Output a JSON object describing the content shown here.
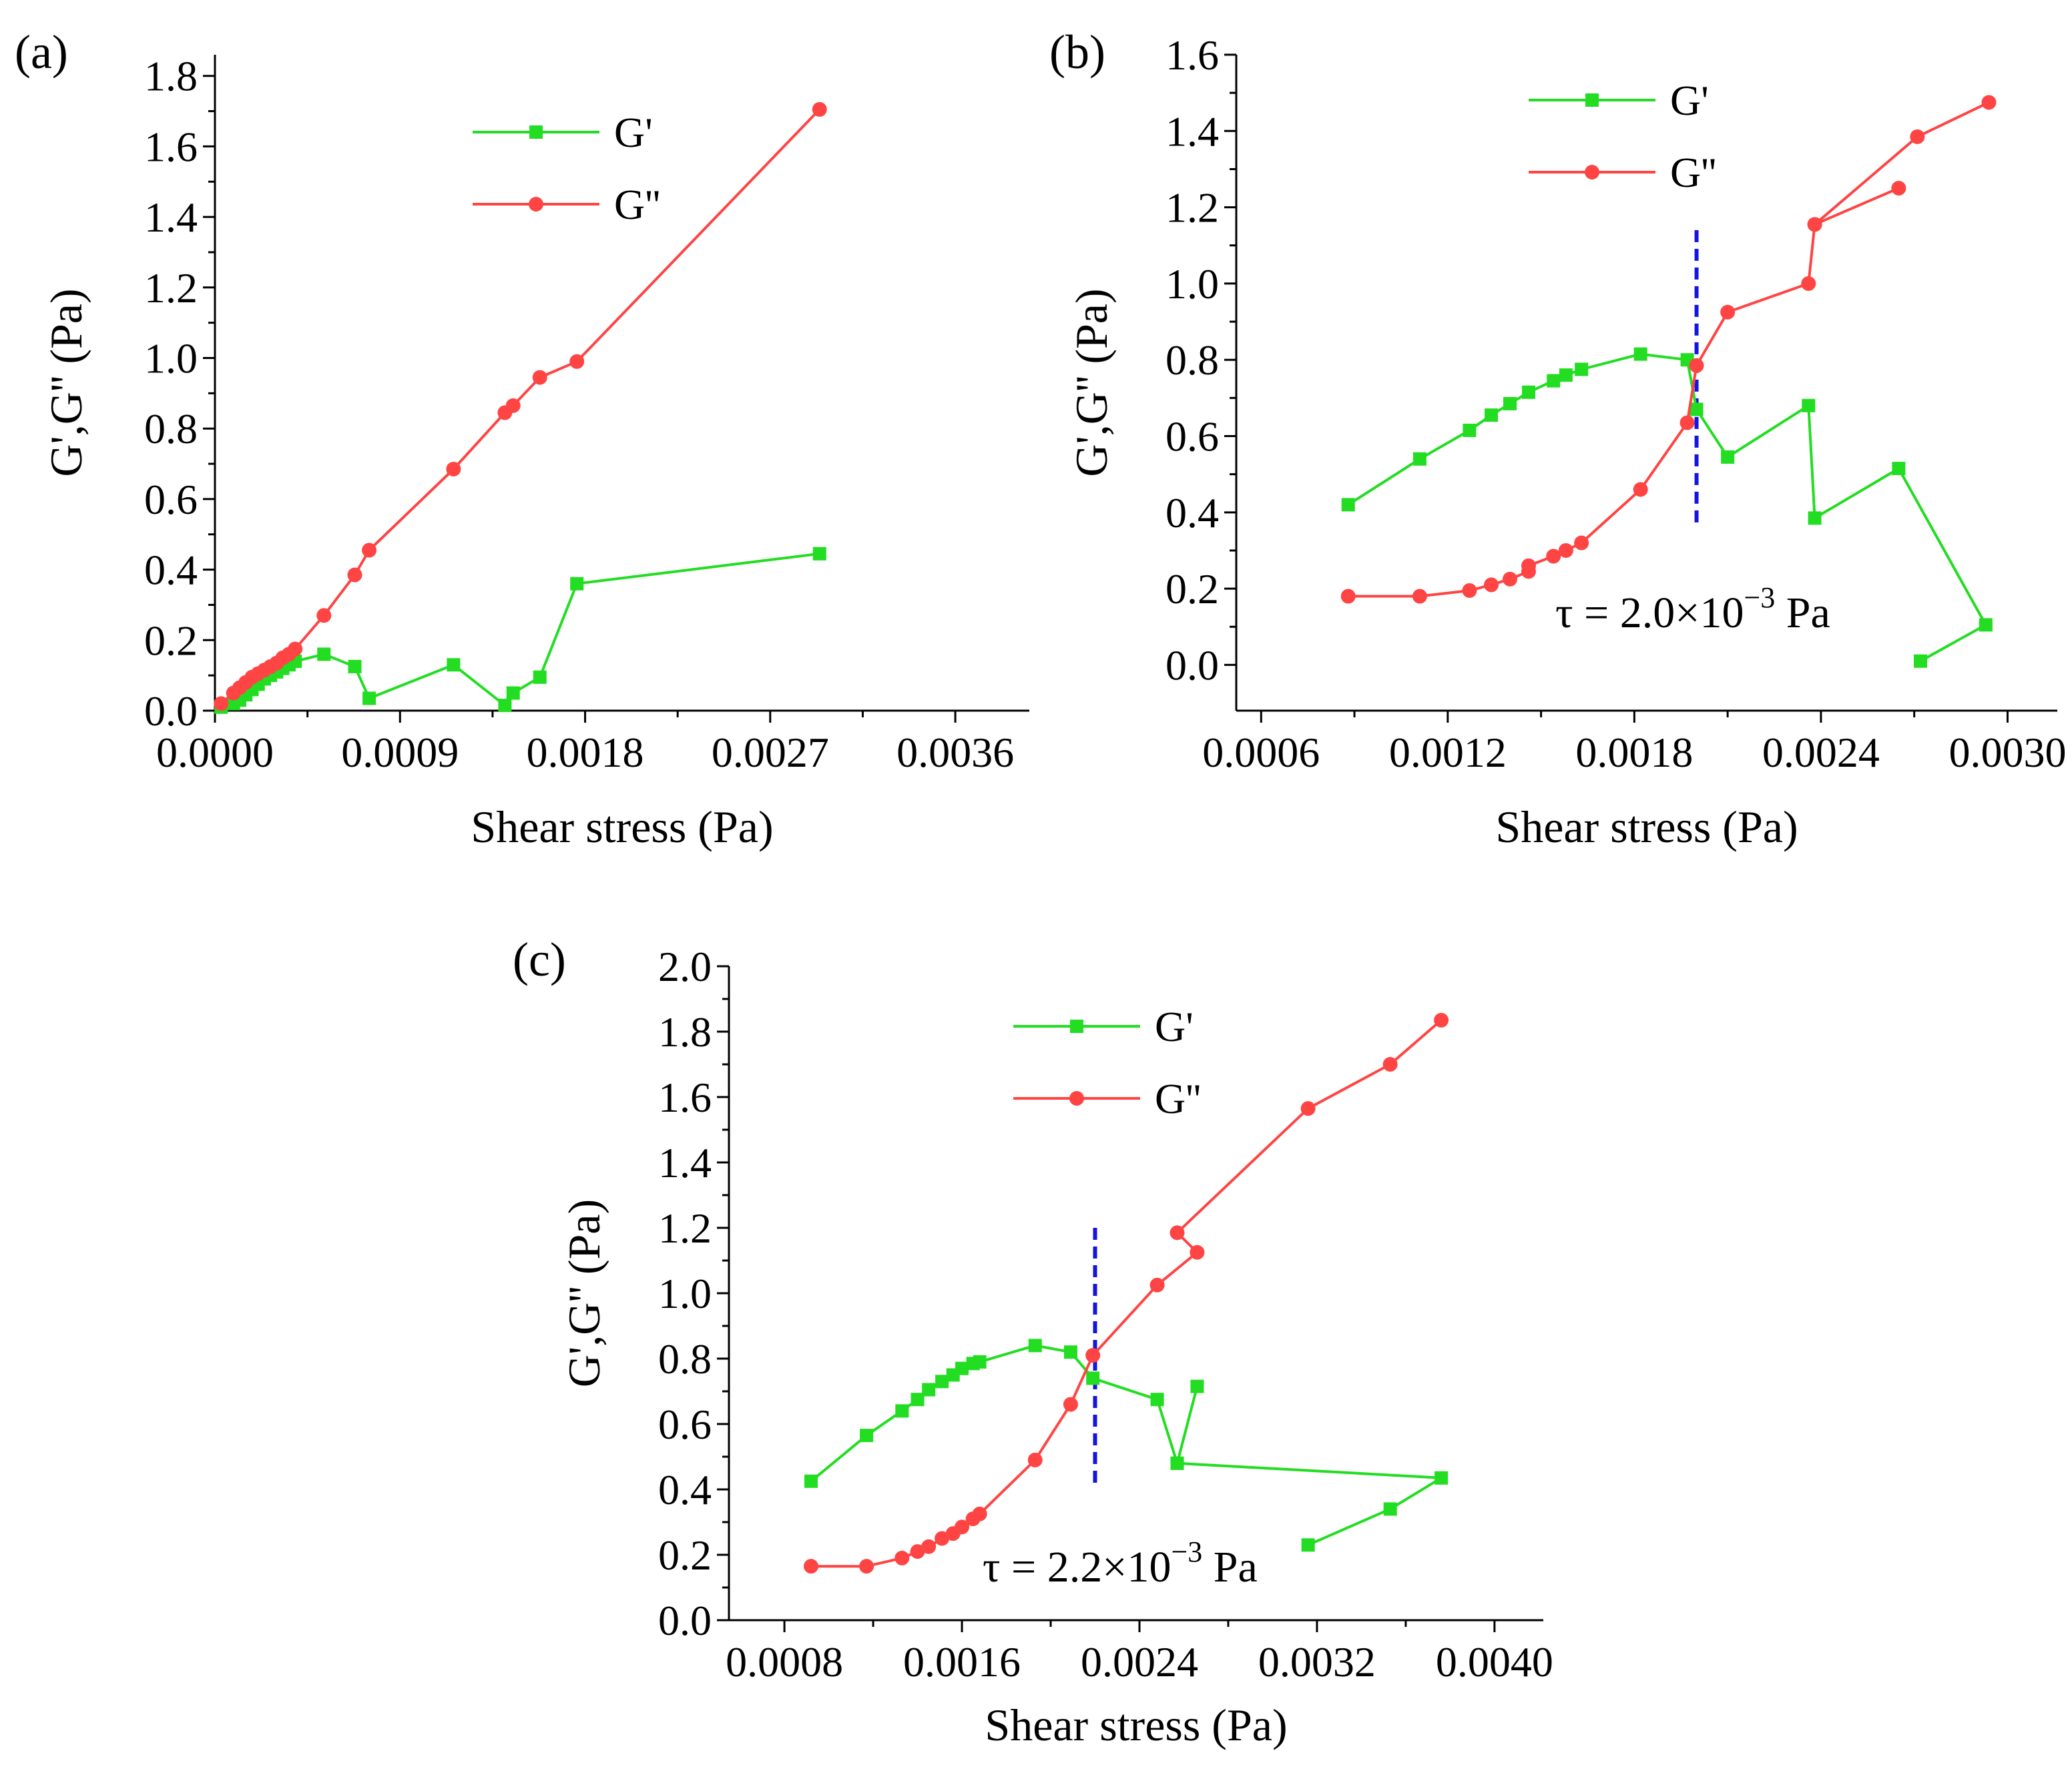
{
  "colors": {
    "g_prime": "#22dd22",
    "g_double": "#ff4444",
    "crossover_line": "#1515e0",
    "axis": "#000000"
  },
  "legend": {
    "g_prime": "G'",
    "g_double": "G''"
  },
  "chart_data": [
    {
      "type": "line",
      "panel_label": "(a)",
      "xlabel": "Shear stress (Pa)",
      "ylabel": "G',G'' (Pa)",
      "xlim": [
        0,
        0.00396
      ],
      "ylim": [
        0,
        1.86
      ],
      "x_ticks": [
        0,
        0.0009,
        0.0018,
        0.0027,
        0.0036
      ],
      "x_tick_labels": [
        "0.0000",
        "0.0009",
        "0.0018",
        "0.0027",
        "0.0036"
      ],
      "y_ticks": [
        0,
        0.2,
        0.4,
        0.6,
        0.8,
        1.0,
        1.2,
        1.4,
        1.6,
        1.8
      ],
      "y_tick_labels": [
        "0.0",
        "0.2",
        "0.4",
        "0.6",
        "0.8",
        "1.0",
        "1.2",
        "1.4",
        "1.6",
        "1.8"
      ],
      "series": [
        {
          "name": "G'",
          "marker": "square",
          "x": [
            3e-05,
            9e-05,
            0.00012,
            0.00015,
            0.00018,
            0.00021,
            0.00024,
            0.00027,
            0.0003,
            0.00033,
            0.00036,
            0.00039,
            0.00053,
            0.00068,
            0.00075,
            0.00116,
            0.00141,
            0.00145,
            0.00158,
            0.00176,
            0.00294
          ],
          "y": [
            0.01,
            0.02,
            0.03,
            0.045,
            0.06,
            0.075,
            0.09,
            0.1,
            0.11,
            0.12,
            0.13,
            0.14,
            0.16,
            0.125,
            0.035,
            0.13,
            0.015,
            0.05,
            0.095,
            0.36,
            0.445
          ]
        },
        {
          "name": "G''",
          "marker": "circle",
          "x": [
            3e-05,
            9e-05,
            0.00012,
            0.00015,
            0.00018,
            0.00021,
            0.00024,
            0.00027,
            0.0003,
            0.00033,
            0.00036,
            0.00039,
            0.00053,
            0.00068,
            0.00075,
            0.00116,
            0.00141,
            0.00145,
            0.00158,
            0.00176,
            0.00294
          ],
          "y": [
            0.02,
            0.05,
            0.065,
            0.08,
            0.095,
            0.105,
            0.115,
            0.125,
            0.135,
            0.15,
            0.16,
            0.175,
            0.27,
            0.385,
            0.455,
            0.685,
            0.845,
            0.865,
            0.945,
            0.99,
            1.705
          ]
        }
      ]
    },
    {
      "type": "line",
      "panel_label": "(b)",
      "xlabel": "Shear stress (Pa)",
      "ylabel": "G',G'' (Pa)",
      "annotation": "τ = 2.0×10",
      "annotation_exponent": "−3",
      "annotation_unit": " Pa",
      "crossover_x": 0.002,
      "crossover_y_range": [
        0.36,
        1.14
      ],
      "xlim": [
        0.00052,
        0.00316
      ],
      "ylim": [
        -0.12,
        1.6
      ],
      "x_ticks": [
        0.0006,
        0.0012,
        0.0018,
        0.0024,
        0.003
      ],
      "x_tick_labels": [
        "0.0006",
        "0.0012",
        "0.0018",
        "0.0024",
        "0.0030"
      ],
      "y_ticks": [
        0,
        0.2,
        0.4,
        0.6,
        0.8,
        1.0,
        1.2,
        1.4,
        1.6
      ],
      "y_tick_labels": [
        "0.0",
        "0.2",
        "0.4",
        "0.6",
        "0.8",
        "1.0",
        "1.2",
        "1.4",
        "1.6"
      ],
      "series": [
        {
          "name": "G'",
          "marker": "square",
          "x": [
            0.00088,
            0.00111,
            0.00127,
            0.00134,
            0.0014,
            0.00146,
            0.00154,
            0.00158,
            0.00163,
            0.00182,
            0.00197,
            0.002,
            0.0021,
            0.00236,
            0.00238,
            0.00265,
            0.00293,
            0.00272
          ],
          "y": [
            0.42,
            0.54,
            0.615,
            0.655,
            0.685,
            0.715,
            0.745,
            0.76,
            0.775,
            0.815,
            0.8,
            0.67,
            0.545,
            0.68,
            0.385,
            0.515,
            0.105,
            0.01
          ]
        },
        {
          "name": "G''",
          "marker": "circle",
          "x": [
            0.00088,
            0.00111,
            0.00127,
            0.00134,
            0.0014,
            0.00146,
            0.00146,
            0.00154,
            0.00158,
            0.00163,
            0.00182,
            0.00197,
            0.002,
            0.0021,
            0.00236,
            0.00238,
            0.00265,
            0.00238,
            0.00271,
            0.00294
          ],
          "y": [
            0.18,
            0.18,
            0.195,
            0.21,
            0.225,
            0.245,
            0.26,
            0.285,
            0.3,
            0.32,
            0.46,
            0.635,
            0.785,
            0.925,
            1.0,
            1.155,
            1.25,
            1.155,
            1.385,
            1.475
          ]
        }
      ]
    },
    {
      "type": "line",
      "panel_label": "(c)",
      "xlabel": "Shear stress (Pa)",
      "ylabel": "G',G'' (Pa)",
      "annotation": "τ = 2.2×10",
      "annotation_exponent": "−3",
      "annotation_unit": " Pa",
      "crossover_x": 0.0022,
      "crossover_y_range": [
        0.42,
        1.2
      ],
      "xlim": [
        0.00055,
        0.00422
      ],
      "ylim": [
        0,
        2.0
      ],
      "x_ticks": [
        0.0008,
        0.0016,
        0.0024,
        0.0032,
        0.004
      ],
      "x_tick_labels": [
        "0.0008",
        "0.0016",
        "0.0024",
        "0.0032",
        "0.0040"
      ],
      "y_ticks": [
        0,
        0.2,
        0.4,
        0.6,
        0.8,
        1.0,
        1.2,
        1.4,
        1.6,
        1.8,
        2.0
      ],
      "y_tick_labels": [
        "0.0",
        "0.2",
        "0.4",
        "0.6",
        "0.8",
        "1.0",
        "1.2",
        "1.4",
        "1.6",
        "1.8",
        "2.0"
      ],
      "series": [
        {
          "name": "G'",
          "marker": "square",
          "x": [
            0.00092,
            0.00117,
            0.00133,
            0.0014,
            0.00145,
            0.00151,
            0.00156,
            0.0016,
            0.00165,
            0.00168,
            0.00193,
            0.00209,
            0.00219,
            0.00248,
            0.00257,
            0.00266,
            0.00257,
            0.00376,
            0.00353,
            0.00316
          ],
          "y": [
            0.425,
            0.565,
            0.64,
            0.675,
            0.705,
            0.73,
            0.75,
            0.77,
            0.785,
            0.79,
            0.84,
            0.82,
            0.74,
            0.675,
            0.48,
            0.715,
            0.48,
            0.435,
            0.34,
            0.23
          ]
        },
        {
          "name": "G''",
          "marker": "circle",
          "x": [
            0.00092,
            0.00117,
            0.00133,
            0.0014,
            0.00145,
            0.00151,
            0.00156,
            0.0016,
            0.00165,
            0.00168,
            0.00193,
            0.00209,
            0.00219,
            0.00248,
            0.00266,
            0.00257,
            0.00316,
            0.00353,
            0.00376
          ],
          "y": [
            0.165,
            0.165,
            0.19,
            0.21,
            0.225,
            0.25,
            0.265,
            0.285,
            0.31,
            0.325,
            0.49,
            0.66,
            0.81,
            1.025,
            1.125,
            1.185,
            1.565,
            1.7,
            1.835
          ]
        }
      ]
    }
  ]
}
